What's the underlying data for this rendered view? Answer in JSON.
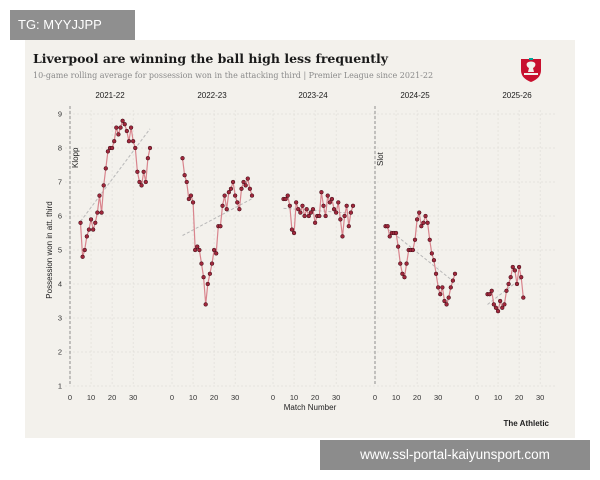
{
  "tag": {
    "text": "TG: MYYJJPP"
  },
  "watermark": {
    "text": "www.ssl-portal-kaiyunsport.com"
  },
  "logo": {
    "name": "liverpool-crest"
  },
  "colors": {
    "line": "#d9848d",
    "dot": "#a0283c",
    "trend": "#b8b8b8",
    "background": "#f3f1ec"
  },
  "chart_data": {
    "type": "line",
    "title": "Liverpool are winning the ball high less frequently",
    "subtitle": "10-game rolling average for possession won in the attacking third | Premier League since 2021-22",
    "xlabel": "Match Number",
    "ylabel": "Possession won in att. third",
    "ylim": [
      1,
      9
    ],
    "yticks": [
      "1",
      "2",
      "3",
      "4",
      "5",
      "6",
      "7",
      "8",
      "9"
    ],
    "xlim": [
      0,
      38
    ],
    "xticks": [
      "0",
      "10",
      "20",
      "30"
    ],
    "credit": "The Athletic",
    "annotations": [
      {
        "season": "2021-22",
        "text": "Klopp"
      },
      {
        "season": "2024-25",
        "text": "Slot"
      }
    ],
    "series": [
      {
        "name": "2021-22",
        "x": [
          5,
          6,
          7,
          8,
          9,
          10,
          11,
          12,
          13,
          14,
          15,
          16,
          17,
          18,
          19,
          20,
          21,
          22,
          23,
          24,
          25,
          26,
          27,
          28,
          29,
          30,
          31,
          32,
          33,
          34,
          35,
          36,
          37,
          38
        ],
        "values": [
          5.8,
          4.8,
          5.0,
          5.4,
          5.6,
          5.9,
          5.6,
          5.8,
          6.1,
          6.6,
          6.1,
          6.9,
          7.4,
          7.9,
          8.0,
          8.0,
          8.2,
          8.6,
          8.4,
          8.6,
          8.8,
          8.7,
          8.5,
          8.2,
          8.6,
          8.2,
          8.0,
          7.3,
          7.0,
          6.9,
          7.3,
          7.0,
          7.7,
          8.0
        ]
      },
      {
        "name": "2022-23",
        "x": [
          5,
          6,
          7,
          8,
          9,
          10,
          11,
          12,
          13,
          14,
          15,
          16,
          17,
          18,
          19,
          20,
          21,
          22,
          23,
          24,
          25,
          26,
          27,
          28,
          29,
          30,
          31,
          32,
          33,
          34,
          35,
          36,
          37,
          38
        ],
        "values": [
          7.7,
          7.2,
          7.0,
          6.5,
          6.6,
          6.4,
          5.0,
          5.1,
          5.0,
          4.6,
          4.2,
          3.4,
          4.0,
          4.3,
          4.6,
          5.0,
          4.9,
          5.7,
          5.7,
          6.3,
          6.6,
          6.2,
          6.7,
          6.8,
          7.0,
          6.6,
          6.4,
          6.2,
          6.8,
          7.0,
          6.9,
          7.1,
          6.8,
          6.6
        ]
      },
      {
        "name": "2023-24",
        "x": [
          5,
          6,
          7,
          8,
          9,
          10,
          11,
          12,
          13,
          14,
          15,
          16,
          17,
          18,
          19,
          20,
          21,
          22,
          23,
          24,
          25,
          26,
          27,
          28,
          29,
          30,
          31,
          32,
          33,
          34,
          35,
          36,
          37,
          38
        ],
        "values": [
          6.5,
          6.5,
          6.6,
          6.3,
          5.6,
          5.5,
          6.4,
          6.2,
          6.1,
          6.3,
          6.0,
          6.2,
          6.0,
          6.1,
          6.2,
          5.8,
          6.0,
          6.0,
          6.7,
          6.3,
          6.0,
          6.6,
          6.4,
          6.5,
          6.2,
          6.1,
          6.4,
          5.9,
          5.4,
          6.0,
          6.3,
          5.7,
          6.1,
          6.3
        ]
      },
      {
        "name": "2024-25",
        "x": [
          5,
          6,
          7,
          8,
          9,
          10,
          11,
          12,
          13,
          14,
          15,
          16,
          17,
          18,
          19,
          20,
          21,
          22,
          23,
          24,
          25,
          26,
          27,
          28,
          29,
          30,
          31,
          32,
          33,
          34,
          35,
          36,
          37,
          38
        ],
        "values": [
          5.7,
          5.7,
          5.4,
          5.5,
          5.5,
          5.5,
          5.1,
          4.6,
          4.3,
          4.2,
          4.6,
          5.0,
          5.0,
          5.0,
          5.3,
          5.9,
          6.1,
          5.7,
          5.8,
          6.0,
          5.8,
          5.3,
          4.9,
          4.7,
          4.3,
          3.9,
          3.7,
          3.9,
          3.5,
          3.4,
          3.6,
          3.9,
          4.1,
          4.3
        ]
      },
      {
        "name": "2025-26",
        "x": [
          5,
          6,
          7,
          8,
          9,
          10,
          11,
          12,
          13,
          14,
          15,
          16,
          17,
          18,
          19,
          20,
          21,
          22
        ],
        "values": [
          3.7,
          3.7,
          3.8,
          3.4,
          3.3,
          3.2,
          3.5,
          3.3,
          3.4,
          3.8,
          4.0,
          4.2,
          4.5,
          4.4,
          4.0,
          4.5,
          4.2,
          3.6
        ]
      }
    ]
  }
}
